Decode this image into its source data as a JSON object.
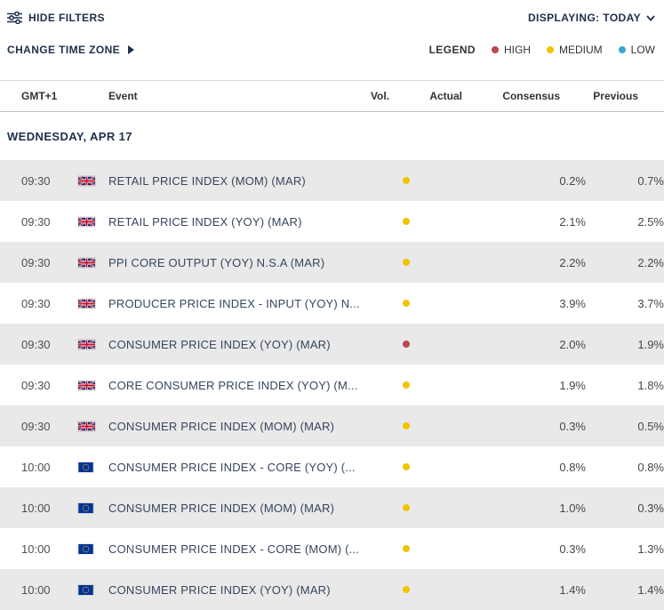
{
  "toolbar": {
    "hide_filters_label": "HIDE FILTERS",
    "displaying_label": "DISPLAYING: TODAY"
  },
  "subbar": {
    "change_time_zone_label": "CHANGE TIME ZONE",
    "legend": {
      "title": "LEGEND",
      "items": [
        {
          "label": "HIGH",
          "color": "#b5494d",
          "key": "high"
        },
        {
          "label": "MEDIUM",
          "color": "#f3c300",
          "key": "medium"
        },
        {
          "label": "LOW",
          "color": "#3aa5d9",
          "key": "low"
        }
      ]
    }
  },
  "table": {
    "columns": [
      "GMT+1",
      "Event",
      "Vol.",
      "Actual",
      "Consensus",
      "Previous"
    ],
    "day_header": "WEDNESDAY, APR 17",
    "rows": [
      {
        "time": "09:30",
        "flag": "gb",
        "event": "RETAIL PRICE INDEX (MOM) (MAR)",
        "vol": "medium",
        "actual": "",
        "consensus": "0.2%",
        "previous": "0.7%"
      },
      {
        "time": "09:30",
        "flag": "gb",
        "event": "RETAIL PRICE INDEX (YOY) (MAR)",
        "vol": "medium",
        "actual": "",
        "consensus": "2.1%",
        "previous": "2.5%"
      },
      {
        "time": "09:30",
        "flag": "gb",
        "event": "PPI CORE OUTPUT (YOY) N.S.A (MAR)",
        "vol": "medium",
        "actual": "",
        "consensus": "2.2%",
        "previous": "2.2%"
      },
      {
        "time": "09:30",
        "flag": "gb",
        "event": "PRODUCER PRICE INDEX - INPUT (YOY) N...",
        "vol": "medium",
        "actual": "",
        "consensus": "3.9%",
        "previous": "3.7%"
      },
      {
        "time": "09:30",
        "flag": "gb",
        "event": "CONSUMER PRICE INDEX (YOY) (MAR)",
        "vol": "high",
        "actual": "",
        "consensus": "2.0%",
        "previous": "1.9%"
      },
      {
        "time": "09:30",
        "flag": "gb",
        "event": "CORE CONSUMER PRICE INDEX (YOY) (M...",
        "vol": "medium",
        "actual": "",
        "consensus": "1.9%",
        "previous": "1.8%"
      },
      {
        "time": "09:30",
        "flag": "gb",
        "event": "CONSUMER PRICE INDEX (MOM) (MAR)",
        "vol": "medium",
        "actual": "",
        "consensus": "0.3%",
        "previous": "0.5%"
      },
      {
        "time": "10:00",
        "flag": "eu",
        "event": "CONSUMER PRICE INDEX - CORE (YOY) (...",
        "vol": "medium",
        "actual": "",
        "consensus": "0.8%",
        "previous": "0.8%"
      },
      {
        "time": "10:00",
        "flag": "eu",
        "event": "CONSUMER PRICE INDEX (MOM) (MAR)",
        "vol": "medium",
        "actual": "",
        "consensus": "1.0%",
        "previous": "0.3%"
      },
      {
        "time": "10:00",
        "flag": "eu",
        "event": "CONSUMER PRICE INDEX - CORE (MOM) (...",
        "vol": "medium",
        "actual": "",
        "consensus": "0.3%",
        "previous": "1.3%"
      },
      {
        "time": "10:00",
        "flag": "eu",
        "event": "CONSUMER PRICE INDEX (YOY) (MAR)",
        "vol": "medium",
        "actual": "",
        "consensus": "1.4%",
        "previous": "1.4%"
      }
    ]
  },
  "colors": {
    "brand_navy": "#20304c",
    "row_alt_bg": "#e9e9e9",
    "high": "#b5494d",
    "medium": "#f3c300",
    "low": "#3aa5d9"
  }
}
